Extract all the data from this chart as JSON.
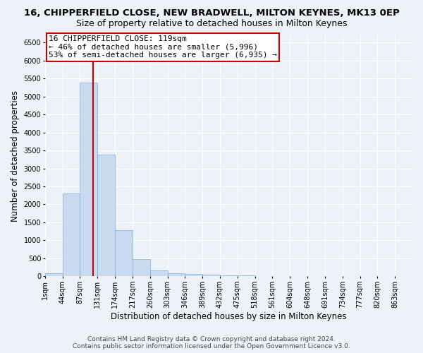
{
  "title": "16, CHIPPERFIELD CLOSE, NEW BRADWELL, MILTON KEYNES, MK13 0EP",
  "subtitle": "Size of property relative to detached houses in Milton Keynes",
  "xlabel": "Distribution of detached houses by size in Milton Keynes",
  "ylabel": "Number of detached properties",
  "bin_labels": [
    "1sqm",
    "44sqm",
    "87sqm",
    "131sqm",
    "174sqm",
    "217sqm",
    "260sqm",
    "303sqm",
    "346sqm",
    "389sqm",
    "432sqm",
    "475sqm",
    "518sqm",
    "561sqm",
    "604sqm",
    "648sqm",
    "691sqm",
    "734sqm",
    "777sqm",
    "820sqm",
    "863sqm"
  ],
  "bar_values": [
    80,
    2300,
    5380,
    3380,
    1290,
    480,
    170,
    90,
    60,
    50,
    30,
    20,
    10,
    5,
    3,
    2,
    1,
    1,
    0,
    0,
    0
  ],
  "bar_color": "#c8d9f0",
  "bar_edge_color": "#7ab0d8",
  "vline_color": "#cc0000",
  "ylim": [
    0,
    6700
  ],
  "yticks": [
    0,
    500,
    1000,
    1500,
    2000,
    2500,
    3000,
    3500,
    4000,
    4500,
    5000,
    5500,
    6000,
    6500
  ],
  "annotation_title": "16 CHIPPERFIELD CLOSE: 119sqm",
  "annotation_line1": "← 46% of detached houses are smaller (5,996)",
  "annotation_line2": "53% of semi-detached houses are larger (6,935) →",
  "annotation_box_color": "#ffffff",
  "annotation_box_edge": "#cc0000",
  "footer1": "Contains HM Land Registry data © Crown copyright and database right 2024.",
  "footer2": "Contains public sector information licensed under the Open Government Licence v3.0.",
  "background_color": "#eef2f8",
  "grid_color": "#ffffff",
  "title_fontsize": 9.5,
  "subtitle_fontsize": 9,
  "axis_label_fontsize": 8.5,
  "tick_fontsize": 7,
  "annotation_fontsize": 8,
  "footer_fontsize": 6.5
}
